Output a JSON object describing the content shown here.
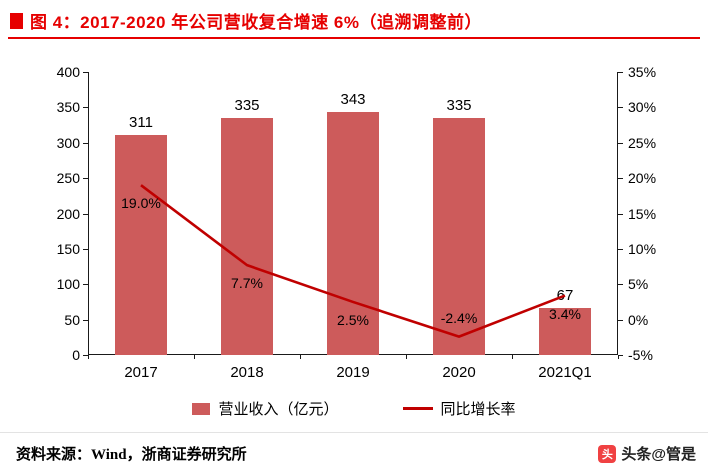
{
  "colors": {
    "title-red": "#e60000",
    "bar-red": "#cd5b5b",
    "line-red": "#c00000",
    "axis-black": "#1a1a1a"
  },
  "header": {
    "title": "图 4：2017-2020 年公司营收复合增速 6%（追溯调整前）"
  },
  "chart_data": {
    "type": "bar+line",
    "title": "图 4：2017-2020 年公司营收复合增速 6%（追溯调整前）",
    "categories": [
      "2017",
      "2018",
      "2019",
      "2020",
      "2021Q1"
    ],
    "series": [
      {
        "name": "营业收入（亿元）",
        "type": "bar",
        "axis": "left",
        "values": [
          311,
          335,
          343,
          335,
          67
        ],
        "labels": [
          "311",
          "335",
          "343",
          "335",
          "67"
        ],
        "color": "#cd5b5b"
      },
      {
        "name": "同比增长率",
        "type": "line",
        "axis": "right",
        "values": [
          19.0,
          7.7,
          2.5,
          -2.4,
          3.4
        ],
        "labels": [
          "19.0%",
          "7.7%",
          "2.5%",
          "-2.4%",
          "3.4%"
        ],
        "color": "#c00000"
      }
    ],
    "left_axis": {
      "min": 0,
      "max": 400,
      "step": 50,
      "ticks": [
        "0",
        "50",
        "100",
        "150",
        "200",
        "250",
        "300",
        "350",
        "400"
      ]
    },
    "right_axis": {
      "min": -5,
      "max": 35,
      "step": 5,
      "ticks": [
        "-5%",
        "0%",
        "5%",
        "10%",
        "15%",
        "20%",
        "25%",
        "30%",
        "35%"
      ]
    },
    "grid": false,
    "legend_position": "bottom"
  },
  "legend": {
    "items": [
      {
        "label": "营业收入（亿元）",
        "swatch": "square"
      },
      {
        "label": "同比增长率",
        "swatch": "line"
      }
    ]
  },
  "footer": {
    "source": "资料来源：Wind，浙商证券研究所"
  },
  "watermark": {
    "icon_glyph": "头",
    "text": "头条@管是"
  }
}
